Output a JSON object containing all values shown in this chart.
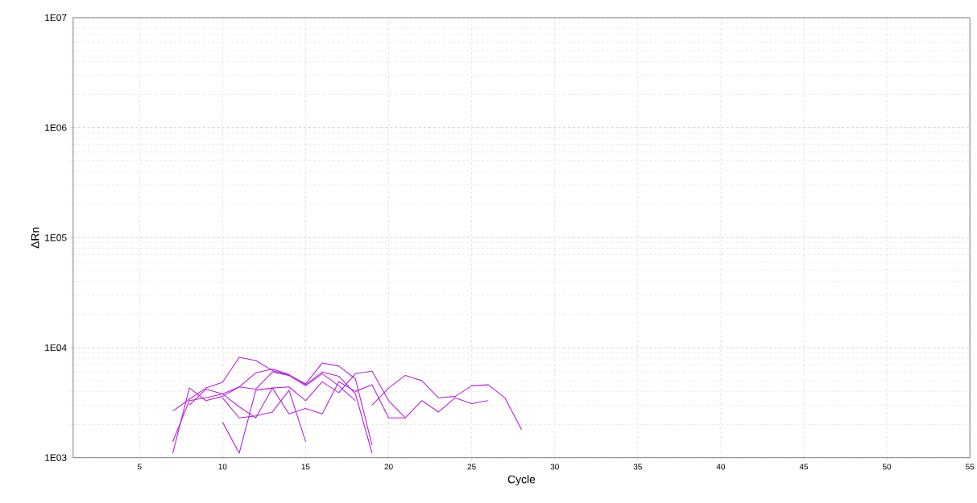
{
  "chart_data": {
    "type": "line",
    "xlabel": "Cycle",
    "ylabel": "ΔRn",
    "log": "y",
    "grid": true,
    "xlim": [
      1,
      55
    ],
    "xticks": [
      5,
      10,
      15,
      20,
      25,
      30,
      35,
      40,
      45,
      50,
      55
    ],
    "ylim": [
      1000,
      10000000
    ],
    "yticks": [
      {
        "value": 1000,
        "label": "1E03"
      },
      {
        "value": 10000,
        "label": "1E04"
      },
      {
        "value": 100000,
        "label": "1E05"
      },
      {
        "value": 1000000,
        "label": "1E06"
      },
      {
        "value": 10000000,
        "label": "1E07"
      }
    ],
    "series": [
      {
        "color": "#b620e0",
        "x": [
          7,
          8,
          9,
          10,
          11,
          12,
          13,
          14,
          15,
          16,
          17,
          18,
          19
        ],
        "values": [
          2650,
          3400,
          4300,
          4850,
          8170,
          7640,
          6200,
          5600,
          4700,
          7250,
          6800,
          5200,
          1300
        ]
      },
      {
        "color": "#b620e0",
        "x": [
          7,
          8,
          9,
          10,
          11,
          12,
          13,
          14,
          15,
          16,
          17,
          18,
          19
        ],
        "values": [
          1400,
          3300,
          3500,
          3800,
          4400,
          5900,
          6400,
          5700,
          4600,
          6000,
          5500,
          3800,
          1100
        ]
      },
      {
        "color": "#b620e0",
        "x": [
          7,
          8,
          9,
          10,
          11,
          12,
          13,
          14,
          15,
          16,
          17,
          18
        ],
        "values": [
          1100,
          4300,
          3300,
          3600,
          4400,
          4200,
          6000,
          5600,
          4500,
          5800,
          4500,
          3300
        ]
      },
      {
        "color": "#b620e0",
        "x": [
          8,
          9,
          10,
          11,
          12,
          13,
          14,
          15,
          16,
          17,
          18,
          19,
          20,
          21
        ],
        "values": [
          3000,
          4200,
          3800,
          2900,
          2300,
          4300,
          4400,
          3300,
          4900,
          3900,
          5800,
          6100,
          3300,
          2300
        ]
      },
      {
        "color": "#b620e0",
        "x": [
          10,
          11,
          12,
          13,
          14,
          15,
          16,
          17,
          18,
          19,
          20,
          21
        ],
        "values": [
          2100,
          1100,
          4100,
          4300,
          2500,
          2800,
          2500,
          4900,
          4000,
          4600,
          2300,
          2300
        ]
      },
      {
        "color": "#b620e0",
        "x": [
          10,
          11,
          12,
          13,
          14,
          15
        ],
        "values": [
          3500,
          2300,
          2400,
          2600,
          4100,
          1400
        ]
      },
      {
        "color": "#b620e0",
        "x": [
          19,
          20,
          21,
          22,
          23,
          24,
          25,
          26,
          27,
          28
        ],
        "values": [
          3000,
          4300,
          5600,
          5000,
          3500,
          3600,
          4500,
          4600,
          3500,
          1800
        ]
      },
      {
        "color": "#b620e0",
        "x": [
          21,
          22,
          23,
          24,
          25,
          26
        ],
        "values": [
          2300,
          3300,
          2600,
          3500,
          3100,
          3300
        ]
      }
    ]
  }
}
